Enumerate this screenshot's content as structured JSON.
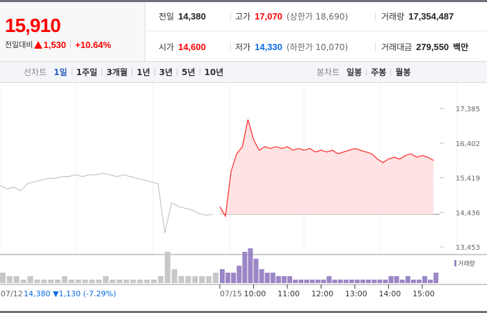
{
  "quote": {
    "price": "15,910",
    "change_label": "전일대비",
    "change": "1,530",
    "change_pct": "+10.64%",
    "direction": "up"
  },
  "stats": {
    "prev_close": {
      "label": "전일",
      "value": "14,380"
    },
    "high": {
      "label": "고가",
      "value": "17,070",
      "limit_label": "(상한가 18,690)"
    },
    "volume": {
      "label": "거래량",
      "value": "17,354,487"
    },
    "open": {
      "label": "시가",
      "value": "14,600"
    },
    "low": {
      "label": "저가",
      "value": "14,330",
      "limit_label": "(하한가 10,070)"
    },
    "amount": {
      "label": "거래대금",
      "value": "279,550",
      "unit": "백만"
    }
  },
  "tabs": {
    "line_label": "선차트",
    "line": [
      "1일",
      "1주일",
      "3개월",
      "1년",
      "3년",
      "5년",
      "10년"
    ],
    "active": "1일",
    "candle_label": "봉차트",
    "candle": [
      "일봉",
      "주봉",
      "월봉"
    ]
  },
  "colors": {
    "up": "#ff0000",
    "down": "#0a6be4",
    "volume": "#9b87c6",
    "prev": "#c8c8c8"
  },
  "chart_data": {
    "type": "line",
    "y_ticks": [
      "17,385",
      "16,402",
      "15,419",
      "14,436",
      "13,453"
    ],
    "ylim": [
      13453,
      17385
    ],
    "prev_close": 14380,
    "x_labels": [
      "07/15",
      "10:00",
      "11:00",
      "12:00",
      "13:00",
      "14:00",
      "15:00"
    ],
    "prev_day": {
      "date": "07/12",
      "close": "14,380",
      "change": "1,130",
      "change_pct": "(-7.29%)",
      "values": [
        15200,
        15100,
        15150,
        15050,
        15250,
        15300,
        15350,
        15400,
        15400,
        15450,
        15450,
        15500,
        15450,
        15500,
        15500,
        15550,
        15500,
        15450,
        15500,
        15450,
        15400,
        15350,
        15300,
        15250,
        13850,
        14700,
        14600,
        14550,
        14500,
        14400,
        14350,
        14380
      ],
      "volume": [
        3,
        2,
        2,
        1,
        2,
        1,
        1,
        1,
        1,
        2,
        1,
        1,
        1,
        1,
        1,
        2,
        1,
        1,
        1,
        1,
        1,
        1,
        1,
        2,
        9,
        4,
        2,
        2,
        2,
        2,
        2,
        3
      ]
    },
    "today": {
      "times": [
        "09:00",
        "09:10",
        "09:20",
        "09:30",
        "09:40",
        "09:50",
        "10:00",
        "10:10",
        "10:20",
        "10:30",
        "10:40",
        "10:50",
        "11:00",
        "11:10",
        "11:20",
        "11:30",
        "11:40",
        "11:50",
        "12:00",
        "12:10",
        "12:20",
        "12:30",
        "12:40",
        "12:50",
        "13:00",
        "13:10",
        "13:20",
        "13:30",
        "13:40",
        "13:50",
        "14:00",
        "14:10",
        "14:20",
        "14:30",
        "14:40",
        "14:50",
        "15:00",
        "15:10",
        "15:20"
      ],
      "values": [
        14600,
        14330,
        15600,
        16100,
        16300,
        17070,
        16500,
        16200,
        16300,
        16250,
        16300,
        16250,
        16300,
        16200,
        16250,
        16200,
        16250,
        16150,
        16200,
        16150,
        16200,
        16100,
        16150,
        16200,
        16250,
        16200,
        16150,
        16100,
        15950,
        15850,
        15950,
        16000,
        15950,
        16050,
        16100,
        16000,
        16050,
        16000,
        15910
      ],
      "volume": [
        4,
        3,
        3,
        5,
        9,
        10,
        7,
        4,
        3,
        3,
        2,
        2,
        2,
        1,
        1,
        1,
        1,
        1,
        1,
        2,
        1,
        1,
        1,
        1,
        1,
        1,
        1,
        1,
        1,
        1,
        2,
        2,
        1,
        2,
        1,
        1,
        2,
        1,
        3
      ]
    },
    "volume_legend": "거래량"
  }
}
